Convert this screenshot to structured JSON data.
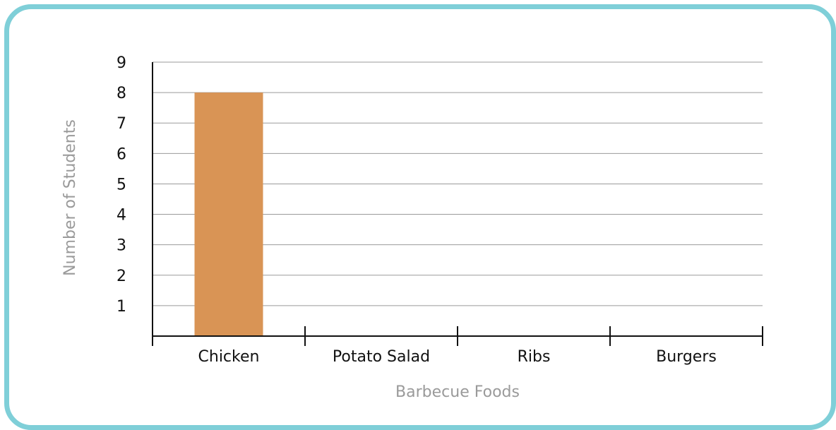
{
  "colors": {
    "frame_border": "#7fcfd8",
    "bar_fill": "#d99455",
    "grid": "#9a9a9a",
    "axis": "#111111",
    "axis_title": "#9a9a9a"
  },
  "chart_data": {
    "type": "bar",
    "categories": [
      "Chicken",
      "Potato Salad",
      "Ribs",
      "Burgers"
    ],
    "values": [
      8,
      0,
      0,
      0
    ],
    "title": "",
    "xlabel": "Barbecue Foods",
    "ylabel": "Number of Students",
    "ylim": [
      0,
      9
    ],
    "yticks": [
      1,
      2,
      3,
      4,
      5,
      6,
      7,
      8,
      9
    ],
    "grid": true,
    "legend": "none"
  }
}
